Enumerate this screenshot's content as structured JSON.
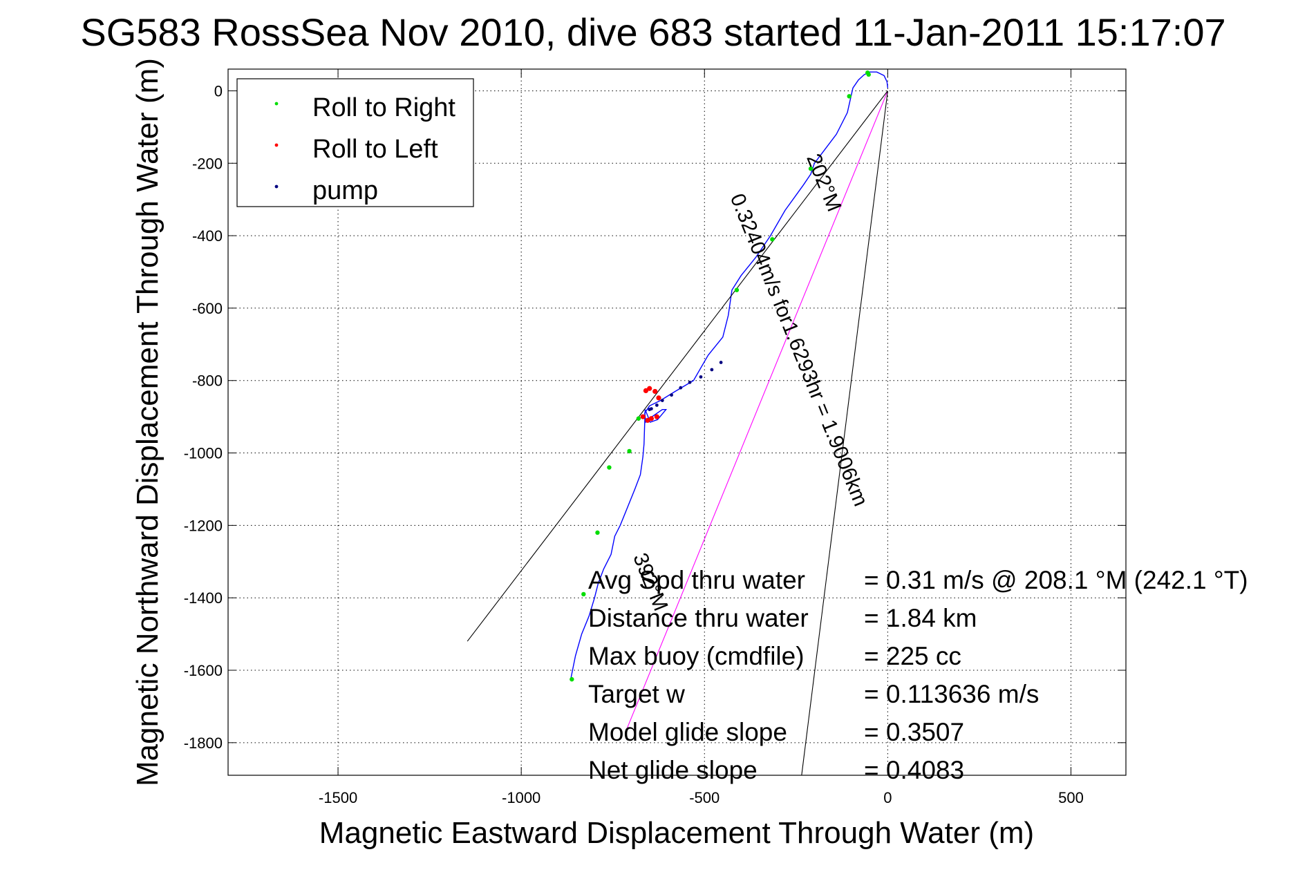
{
  "chart_data": {
    "type": "line",
    "title": "SG583 RossSea Nov 2010, dive 683 started 11-Jan-2011 15:17:07",
    "xlabel": "Magnetic Eastward Displacement Through Water (m)",
    "ylabel": "Magnetic Northward Displacement Through Water (m)",
    "xlim": [
      -1800,
      650
    ],
    "ylim": [
      -1890,
      60
    ],
    "xticks": [
      -1500,
      -1000,
      -500,
      0,
      500
    ],
    "yticks": [
      0,
      -200,
      -400,
      -600,
      -800,
      -1000,
      -1200,
      -1400,
      -1600,
      -1800
    ],
    "grid": true,
    "legend": {
      "placement": "top-left",
      "entries": [
        {
          "label": "Roll to Right",
          "color": "#00dd00"
        },
        {
          "label": "Roll to Left",
          "color": "#ff0000"
        },
        {
          "label": "pump",
          "color": "#000080"
        }
      ]
    },
    "series": [
      {
        "role": "track",
        "color": "#0000ff",
        "x": [
          0,
          -2,
          -10,
          -30,
          -50,
          -65,
          -80,
          -95,
          -100,
          -110,
          -140,
          -170,
          -200,
          -210,
          -230,
          -280,
          -320,
          -360,
          -400,
          -425,
          -435,
          -450,
          -490,
          -530,
          -580,
          -620,
          -650,
          -663,
          -660,
          -643,
          -615,
          -605,
          -628,
          -648,
          -662,
          -665,
          -668,
          -675,
          -690,
          -710,
          -730,
          -745,
          -755,
          -765,
          -775,
          -790,
          -800,
          -815,
          -835,
          -852,
          -865
        ],
        "y": [
          8,
          25,
          42,
          52,
          52,
          44,
          30,
          8,
          -15,
          -60,
          -120,
          -160,
          -200,
          -230,
          -260,
          -330,
          -400,
          -460,
          -510,
          -550,
          -620,
          -680,
          -730,
          -800,
          -830,
          -855,
          -870,
          -890,
          -915,
          -900,
          -880,
          -880,
          -908,
          -915,
          -880,
          -975,
          -1010,
          -1060,
          -1100,
          -1150,
          -1200,
          -1230,
          -1280,
          -1300,
          -1320,
          -1360,
          -1400,
          -1450,
          -1500,
          -1560,
          -1625
        ]
      },
      {
        "role": "average heading (202 °M)",
        "color": "#ff00ff",
        "x": [
          0,
          -712
        ],
        "y": [
          0,
          -1762
        ]
      },
      {
        "role": "uncertainty cone edge",
        "color": "#000000",
        "x": [
          0,
          -1147
        ],
        "y": [
          0,
          -1520
        ]
      },
      {
        "role": "uncertainty cone edge",
        "color": "#000000",
        "x": [
          0,
          -235
        ],
        "y": [
          0,
          -1890
        ]
      }
    ],
    "markers": {
      "roll_right": {
        "color": "#00dd00",
        "x": [
          -55,
          -52,
          -105,
          -210,
          -315,
          -412,
          -680,
          -705,
          -760,
          -792,
          -830,
          -862
        ],
        "y": [
          50,
          45,
          -15,
          -215,
          -410,
          -550,
          -905,
          -995,
          -1040,
          -1220,
          -1390,
          -1625
        ]
      },
      "roll_left": {
        "color": "#ff0000",
        "x": [
          -660,
          -650,
          -635,
          -625,
          -630,
          -645,
          -655,
          -668
        ],
        "y": [
          -828,
          -822,
          -830,
          -848,
          -900,
          -905,
          -910,
          -900
        ]
      },
      "pump": {
        "color": "#000080",
        "x": [
          -455,
          -480,
          -510,
          -540,
          -565,
          -590,
          -615,
          -630,
          -645,
          -650
        ],
        "y": [
          -750,
          -770,
          -790,
          -805,
          -820,
          -840,
          -855,
          -868,
          -878,
          -880
        ]
      }
    },
    "annotations": {
      "along_line": "0.32404m/s for1.6293hr = 1.9006km",
      "heading_top": "202°M",
      "heading_bottom": "392°M",
      "stats": [
        {
          "label": "Avg Spd thru water",
          "value": "=  0.31 m/s @ 208.1 °M (242.1 °T)"
        },
        {
          "label": "Distance thru water",
          "value": "=  1.84 km"
        },
        {
          "label": "Max buoy (cmdfile)",
          "value": "= 225 cc"
        },
        {
          "label": "Target w",
          "value": "= 0.113636 m/s"
        },
        {
          "label": "Model glide slope",
          "value": "= 0.3507"
        },
        {
          "label": "Net glide slope",
          "value": "= 0.4083"
        }
      ]
    }
  }
}
